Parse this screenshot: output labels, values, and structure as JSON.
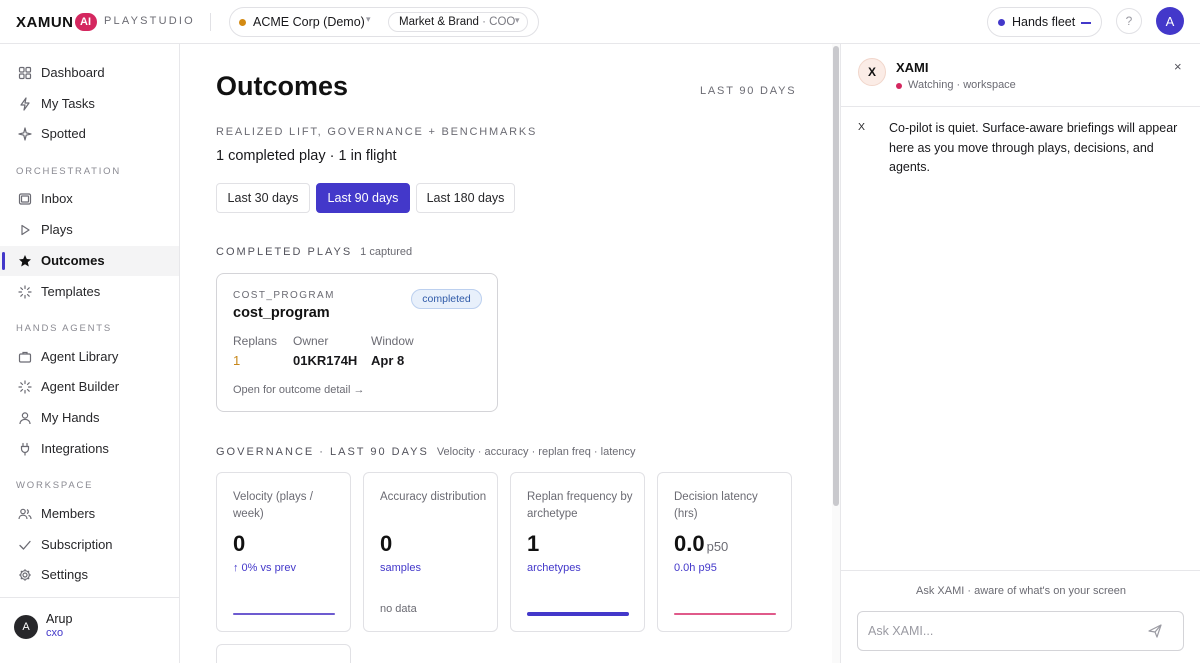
{
  "app": {
    "logo_text": "XAMUN",
    "logo_badge": "AI",
    "product": "PLAYSTUDIO"
  },
  "topbar": {
    "org_name": "ACME Corp (Demo)",
    "role_main": "Market & Brand",
    "role_sub": "· COO",
    "fleet_label": "Hands fleet",
    "help_glyph": "?",
    "avatar_initial": "A",
    "org_status_color": "#d38a12",
    "fleet_status_color": "#4338ca"
  },
  "sidebar": {
    "items_top": [
      {
        "label": "Dashboard",
        "icon": "grid-icon"
      },
      {
        "label": "My Tasks",
        "icon": "bolt-icon"
      },
      {
        "label": "Spotted",
        "icon": "spark-icon"
      }
    ],
    "section_orchestration": "ORCHESTRATION",
    "items_orchestration": [
      {
        "label": "Inbox",
        "icon": "inbox-icon"
      },
      {
        "label": "Plays",
        "icon": "play-icon"
      },
      {
        "label": "Outcomes",
        "icon": "star-icon",
        "active": true
      },
      {
        "label": "Templates",
        "icon": "loader-icon"
      }
    ],
    "section_agents": "HANDS AGENTS",
    "items_agents": [
      {
        "label": "Agent Library",
        "icon": "briefcase-icon"
      },
      {
        "label": "Agent Builder",
        "icon": "loader-icon"
      },
      {
        "label": "My Hands",
        "icon": "user-icon"
      },
      {
        "label": "Integrations",
        "icon": "plug-icon"
      }
    ],
    "section_workspace": "WORKSPACE",
    "items_workspace": [
      {
        "label": "Members",
        "icon": "users-icon"
      },
      {
        "label": "Subscription",
        "icon": "check-icon"
      },
      {
        "label": "Settings",
        "icon": "gear-icon"
      }
    ],
    "user": {
      "initial": "A",
      "name": "Arup",
      "role": "cxo"
    }
  },
  "main": {
    "title": "Outcomes",
    "range_label": "LAST 90 DAYS",
    "subtitle": "REALIZED LIFT, GOVERNANCE + BENCHMARKS",
    "summary": "1 completed play · 1 in flight",
    "periods": [
      {
        "label": "Last 30 days",
        "active": false
      },
      {
        "label": "Last 90 days",
        "active": true
      },
      {
        "label": "Last 180 days",
        "active": false
      }
    ],
    "completed_heading": "COMPLETED PLAYS",
    "completed_note": "1 captured",
    "play_card": {
      "kicker": "COST_PROGRAM",
      "title": "cost_program",
      "badge": "completed",
      "replans_label": "Replans",
      "replans_value": "1",
      "owner_label": "Owner",
      "owner_value": "01KR174H",
      "window_label": "Window",
      "window_value": "Apr 8",
      "link": "Open for outcome detail →"
    },
    "governance_heading": "GOVERNANCE · LAST 90 DAYS",
    "governance_note": "Velocity · accuracy · replan freq · latency",
    "metrics": [
      {
        "label": "Velocity (plays / week)",
        "value": "0",
        "unit": "",
        "sub": "↑ 0% vs prev",
        "bar_fill": 1.0,
        "bar_color": "#6d5bd0",
        "bar_thick": false,
        "nodata": ""
      },
      {
        "label": "Accuracy distribution",
        "value": "0",
        "unit": "",
        "sub": "samples",
        "bar_fill": 0,
        "bar_color": "",
        "bar_thick": false,
        "nodata": "no data"
      },
      {
        "label": "Replan frequency by archetype",
        "value": "1",
        "unit": "",
        "sub": "archetypes",
        "bar_fill": 1.0,
        "bar_color": "#4338ca",
        "bar_thick": true,
        "nodata": ""
      },
      {
        "label": "Decision latency (hrs)",
        "value": "0.0",
        "unit": "p50",
        "sub": "0.0h p95",
        "bar_fill": 1.0,
        "bar_color": "#e05a8a",
        "bar_thick": false,
        "nodata": ""
      }
    ]
  },
  "panel": {
    "avatar": "X",
    "name": "XAMI",
    "status": "Watching · workspace",
    "status_color": "#d4275f",
    "close_glyph": "×",
    "message_marker": "X",
    "message": "Co-pilot is quiet. Surface-aware briefings will appear here as you move through plays, decisions, and agents.",
    "hint": "Ask XAMI · aware of what's on your screen",
    "input_placeholder": "Ask XAMI..."
  }
}
